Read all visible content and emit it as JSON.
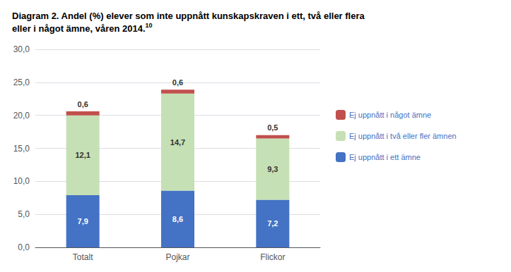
{
  "chart_data": {
    "type": "bar",
    "title": "Diagram 2. Andel (%) elever som inte uppnått kunskapskraven i ett, två eller flera\neller i något ämne, våren 2014.",
    "annotations": [
      "10"
    ],
    "categories": [
      "Totalt",
      "Pojkar",
      "Flickor"
    ],
    "series": [
      {
        "name": "Ej uppnått i ett ämne",
        "color": "#4472C4",
        "values": [
          7.9,
          8.6,
          7.2
        ],
        "value_labels": [
          "7,9",
          "8,6",
          "7,2"
        ]
      },
      {
        "name": "Ej uppnått i två eller fler ämnen",
        "color": "#C5E0B4",
        "values": [
          12.1,
          14.7,
          9.3
        ],
        "value_labels": [
          "12,1",
          "14,7",
          "9,3"
        ]
      },
      {
        "name": "Ej uppnått i något ämne",
        "color": "#C0504D",
        "values": [
          0.6,
          0.6,
          0.5
        ],
        "value_labels": [
          "0,6",
          "0,6",
          "0,5"
        ]
      }
    ],
    "stacked": true,
    "data_labels": true,
    "ylim": [
      0,
      30
    ],
    "yticks": [
      {
        "value": 0,
        "label": "0,0"
      },
      {
        "value": 5,
        "label": "5,0"
      },
      {
        "value": 10,
        "label": "10,0"
      },
      {
        "value": 15,
        "label": "15,0"
      },
      {
        "value": 20,
        "label": "20,0"
      },
      {
        "value": 25,
        "label": "25,0"
      },
      {
        "value": 30,
        "label": "30,0"
      }
    ],
    "grid": true,
    "legend": "right"
  }
}
